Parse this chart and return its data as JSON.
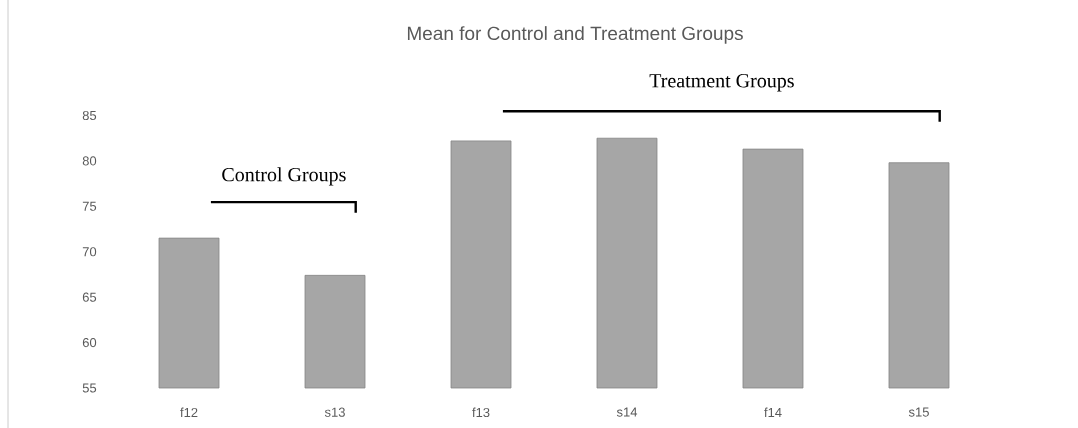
{
  "chart_data": {
    "type": "bar",
    "title": "Mean for Control and Treatment Groups",
    "categories": [
      "f12",
      "s13",
      "f13",
      "s14",
      "f14",
      "s15"
    ],
    "values": [
      71.5,
      67.4,
      82.2,
      82.5,
      81.3,
      79.8
    ],
    "color": "#a6a6a6",
    "ylim": [
      55,
      85
    ],
    "yticks": [
      55,
      60,
      65,
      70,
      75,
      80,
      85
    ],
    "annotations": [
      "Control Groups",
      "Treatment Groups"
    ]
  }
}
